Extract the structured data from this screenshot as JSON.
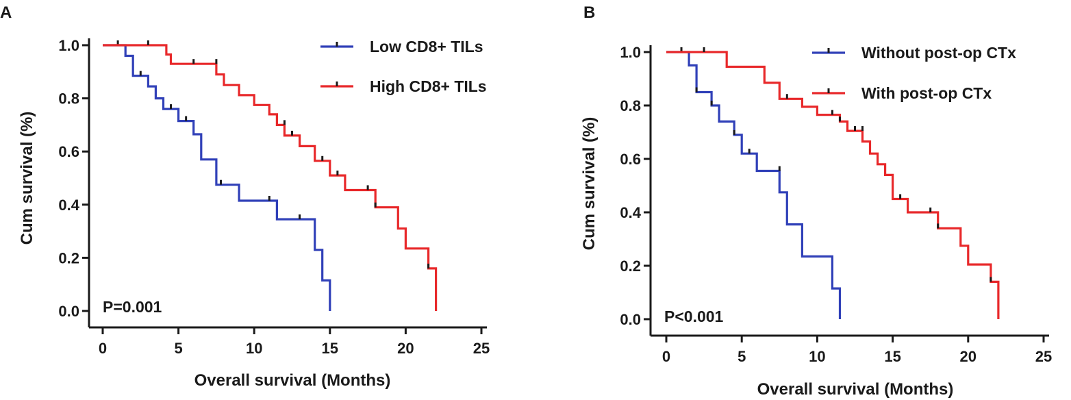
{
  "chart_data": [
    {
      "type": "line",
      "subtype": "kaplan-meier",
      "panel": "A",
      "title": "",
      "xlabel": "Overall survival (Months)",
      "ylabel": "Cum survival (%)",
      "xlim": [
        0,
        25
      ],
      "ylim": [
        0,
        1.0
      ],
      "xticks": [
        "0",
        "5",
        "10",
        "15",
        "20",
        "25"
      ],
      "yticks": [
        "0.0",
        "0.2",
        "0.4",
        "0.6",
        "0.8",
        "1.0"
      ],
      "annotation": "P=0.001",
      "legend_position": "top-right",
      "series": [
        {
          "name": "Low CD8+ TILs",
          "color": "#3040b8",
          "steps": [
            [
              0,
              1.0
            ],
            [
              1.5,
              0.96
            ],
            [
              2.0,
              0.885
            ],
            [
              2.5,
              0.885
            ],
            [
              3.0,
              0.845
            ],
            [
              3.5,
              0.8
            ],
            [
              4.0,
              0.76
            ],
            [
              5.0,
              0.715
            ],
            [
              6.0,
              0.665
            ],
            [
              6.5,
              0.57
            ],
            [
              7.5,
              0.475
            ],
            [
              9.0,
              0.415
            ],
            [
              11.5,
              0.345
            ],
            [
              14.0,
              0.23
            ],
            [
              14.5,
              0.115
            ],
            [
              15.0,
              0.0
            ]
          ],
          "censored": [
            [
              1.0,
              1.0
            ],
            [
              2.5,
              0.885
            ],
            [
              4.5,
              0.76
            ],
            [
              5.5,
              0.715
            ],
            [
              7.8,
              0.475
            ],
            [
              11.0,
              0.415
            ],
            [
              13.0,
              0.345
            ]
          ]
        },
        {
          "name": "High CD8+ TILs",
          "color": "#e8282a",
          "steps": [
            [
              0,
              1.0
            ],
            [
              4.2,
              0.965
            ],
            [
              4.5,
              0.93
            ],
            [
              7.5,
              0.89
            ],
            [
              8.0,
              0.85
            ],
            [
              9.0,
              0.812
            ],
            [
              10.0,
              0.775
            ],
            [
              11.0,
              0.74
            ],
            [
              11.5,
              0.7
            ],
            [
              12.0,
              0.66
            ],
            [
              13.0,
              0.62
            ],
            [
              14.0,
              0.565
            ],
            [
              15.0,
              0.51
            ],
            [
              16.0,
              0.455
            ],
            [
              18.0,
              0.39
            ],
            [
              19.5,
              0.31
            ],
            [
              20.0,
              0.235
            ],
            [
              21.5,
              0.16
            ],
            [
              22.0,
              0.0
            ]
          ],
          "censored": [
            [
              3.0,
              1.0
            ],
            [
              6.0,
              0.93
            ],
            [
              7.5,
              0.93
            ],
            [
              12.0,
              0.7
            ],
            [
              12.5,
              0.66
            ],
            [
              14.5,
              0.565
            ],
            [
              15.5,
              0.51
            ],
            [
              17.5,
              0.455
            ],
            [
              18.0,
              0.39
            ],
            [
              21.5,
              0.16
            ]
          ]
        }
      ]
    },
    {
      "type": "line",
      "subtype": "kaplan-meier",
      "panel": "B",
      "title": "",
      "xlabel": "Overall survival (Months)",
      "ylabel": "Cum survival (%)",
      "xlim": [
        0,
        25
      ],
      "ylim": [
        0,
        1.0
      ],
      "xticks": [
        "0",
        "5",
        "10",
        "15",
        "20",
        "25"
      ],
      "yticks": [
        "0.0",
        "0.2",
        "0.4",
        "0.6",
        "0.8",
        "1.0"
      ],
      "annotation": "P<0.001",
      "legend_position": "top-right",
      "series": [
        {
          "name": "Without post-op CTx",
          "color": "#3040b8",
          "steps": [
            [
              0,
              1.0
            ],
            [
              1.5,
              0.95
            ],
            [
              2.0,
              0.85
            ],
            [
              3.0,
              0.8
            ],
            [
              3.5,
              0.74
            ],
            [
              4.5,
              0.69
            ],
            [
              5.0,
              0.62
            ],
            [
              6.0,
              0.555
            ],
            [
              7.5,
              0.475
            ],
            [
              8.0,
              0.355
            ],
            [
              9.0,
              0.235
            ],
            [
              11.0,
              0.115
            ],
            [
              11.5,
              0.0
            ]
          ],
          "censored": [
            [
              1.0,
              1.0
            ],
            [
              2.0,
              0.85
            ],
            [
              3.0,
              0.8
            ],
            [
              4.5,
              0.69
            ],
            [
              5.5,
              0.62
            ],
            [
              7.5,
              0.555
            ]
          ]
        },
        {
          "name": "With post-op CTx",
          "color": "#e8282a",
          "steps": [
            [
              0,
              1.0
            ],
            [
              4.0,
              0.945
            ],
            [
              6.5,
              0.885
            ],
            [
              7.5,
              0.825
            ],
            [
              9.0,
              0.795
            ],
            [
              10.0,
              0.765
            ],
            [
              11.5,
              0.74
            ],
            [
              12.0,
              0.705
            ],
            [
              13.0,
              0.665
            ],
            [
              13.5,
              0.62
            ],
            [
              14.0,
              0.58
            ],
            [
              14.5,
              0.54
            ],
            [
              15.0,
              0.45
            ],
            [
              16.0,
              0.4
            ],
            [
              18.0,
              0.34
            ],
            [
              19.5,
              0.275
            ],
            [
              20.0,
              0.205
            ],
            [
              21.5,
              0.14
            ],
            [
              22.0,
              0.0
            ]
          ],
          "censored": [
            [
              2.5,
              1.0
            ],
            [
              8.0,
              0.825
            ],
            [
              11.0,
              0.765
            ],
            [
              11.5,
              0.74
            ],
            [
              12.5,
              0.705
            ],
            [
              13.0,
              0.705
            ],
            [
              15.5,
              0.45
            ],
            [
              17.5,
              0.4
            ],
            [
              18.0,
              0.34
            ],
            [
              21.5,
              0.14
            ]
          ]
        }
      ]
    }
  ]
}
